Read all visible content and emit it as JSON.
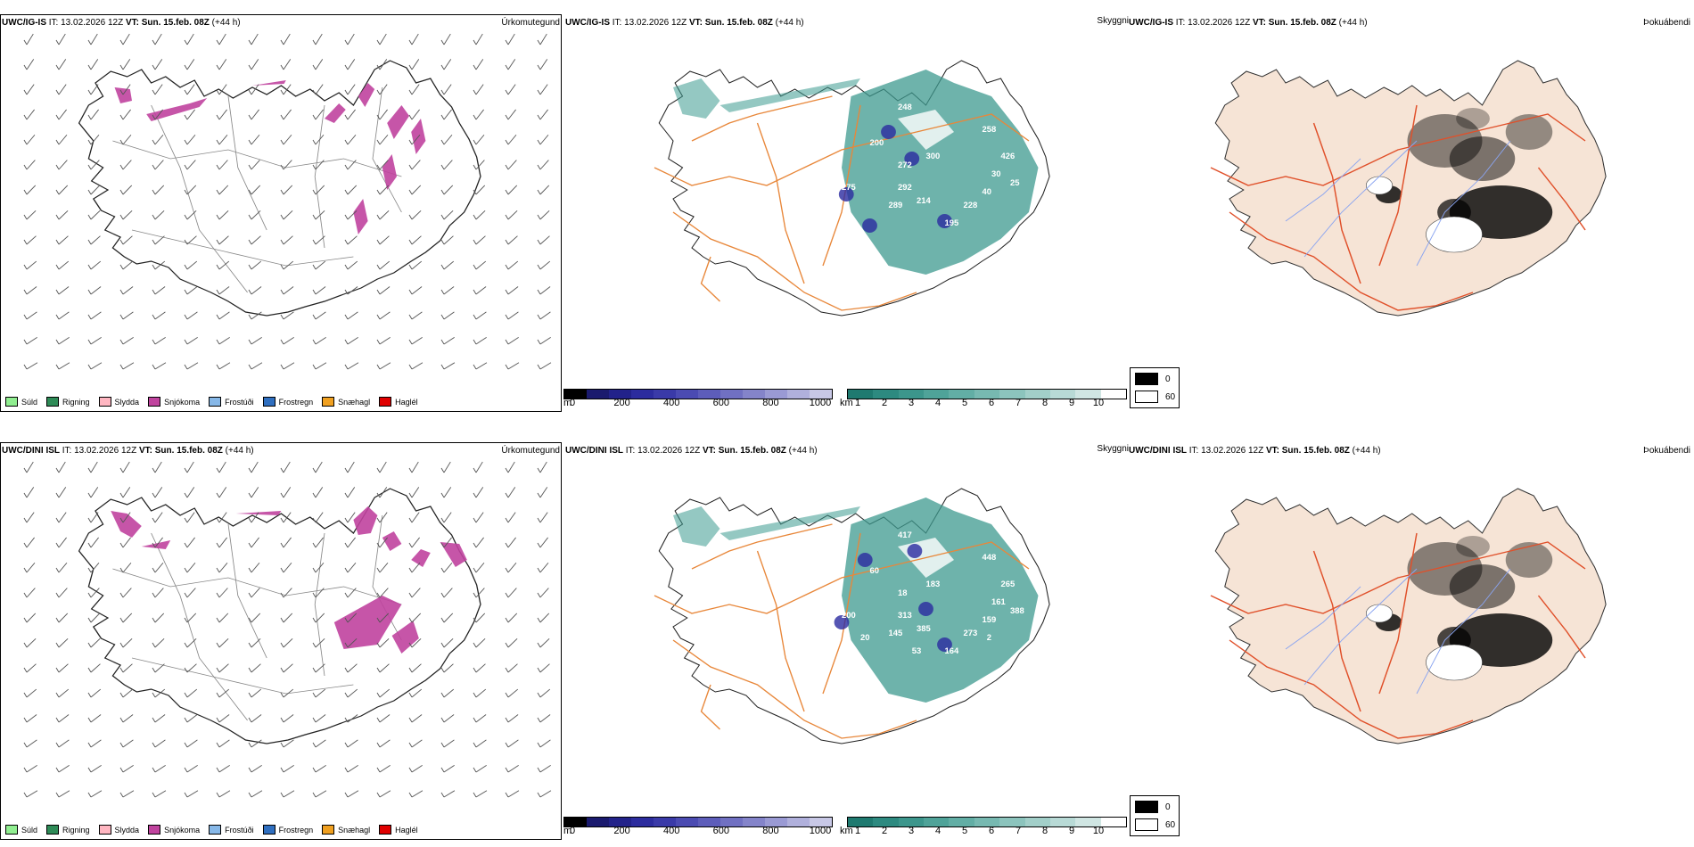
{
  "rows": [
    {
      "model": "UWC/IG-IS",
      "it_label": "IT:",
      "it_value": "13.02.2026 12Z",
      "vt_label": "VT:",
      "vt_value": "Sun. 15.feb. 08Z",
      "lead": "(+44 h)",
      "vis_labels": [
        "248",
        "200",
        "300",
        "272",
        "275",
        "292",
        "289",
        "214",
        "195",
        "228",
        "40",
        "258",
        "426",
        "30",
        "25"
      ]
    },
    {
      "model": "UWC/DINI ISL",
      "it_label": "IT:",
      "it_value": "13.02.2026 12Z",
      "vt_label": "VT:",
      "vt_value": "Sun. 15.feb. 08Z",
      "lead": "(+44 h)",
      "vis_labels": [
        "417",
        "60",
        "183",
        "18",
        "200",
        "313",
        "145",
        "385",
        "164",
        "273",
        "159",
        "448",
        "265",
        "161",
        "388",
        "20",
        "53",
        "2"
      ]
    }
  ],
  "panel_titles": {
    "precip": "Úrkomutegund",
    "vis": "Skyggni",
    "fog": "Þokuábendi"
  },
  "precip_legend": [
    {
      "label": "Súld",
      "color": "#90ee90"
    },
    {
      "label": "Rigning",
      "color": "#2e8b57"
    },
    {
      "label": "Slydda",
      "color": "#ffb6c1"
    },
    {
      "label": "Snjókoma",
      "color": "#c0439e"
    },
    {
      "label": "Frostúði",
      "color": "#87b8e8"
    },
    {
      "label": "Frostregn",
      "color": "#2f6fc0"
    },
    {
      "label": "Snæhagl",
      "color": "#f0a020"
    },
    {
      "label": "Haglél",
      "color": "#e00000"
    }
  ],
  "cloud_base_bar": {
    "unit": "m",
    "ticks": [
      "0",
      "200",
      "400",
      "600",
      "800",
      "1000"
    ],
    "colors": [
      "#000000",
      "#1a1a6e",
      "#22228a",
      "#2c2c9e",
      "#3a3aa8",
      "#4b4bb2",
      "#5d5dba",
      "#7070c2",
      "#8484ca",
      "#9a9ad4",
      "#b0b0dc",
      "#c8c8e6"
    ]
  },
  "visibility_bar": {
    "unit": "km",
    "ticks": [
      "1",
      "2",
      "3",
      "4",
      "5",
      "6",
      "7",
      "8",
      "9",
      "10"
    ],
    "colors": [
      "#1f7a70",
      "#2d8a80",
      "#3c968c",
      "#4fa399",
      "#62aea5",
      "#77b9b1",
      "#8cc4bd",
      "#a2cfc9",
      "#b8dad6",
      "#d0e6e3",
      "#ffffff"
    ]
  },
  "fog_legend": [
    {
      "label": "0",
      "color": "#000000"
    },
    {
      "label": "60",
      "color": "#ffffff"
    }
  ],
  "colors": {
    "snow": "#c0439e",
    "road": "#e8873a",
    "land_fog": "#f6e4d6",
    "road_fog": "#e0502a",
    "river": "#8aa4f0",
    "vis_teal": "#3d9a8f",
    "cloud_blue": "#2b2ba0"
  }
}
